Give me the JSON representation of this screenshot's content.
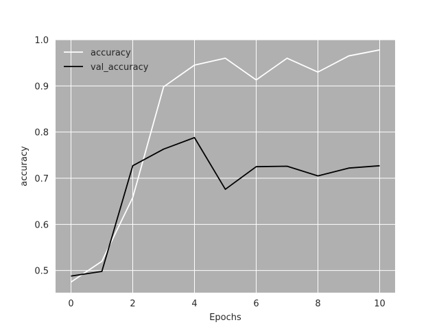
{
  "chart_data": {
    "type": "line",
    "xlabel": "Epochs",
    "ylabel": "accuracy",
    "xlim": [
      -0.5,
      10.5
    ],
    "ylim": [
      0.452,
      1.0
    ],
    "xticks": [
      "0",
      "2",
      "4",
      "6",
      "8",
      "10"
    ],
    "yticks": [
      "0.5",
      "0.6",
      "0.7",
      "0.8",
      "0.9",
      "1.0"
    ],
    "grid": true,
    "legend_position": "top-left",
    "background_color": "#b0b0b0",
    "grid_color": "#ffffff",
    "x": [
      0,
      1,
      2,
      3,
      4,
      5,
      6,
      7,
      8,
      9,
      10
    ],
    "series": [
      {
        "name": "accuracy",
        "color": "#ffffff",
        "values": [
          0.475,
          0.52,
          0.658,
          0.898,
          0.945,
          0.96,
          0.913,
          0.96,
          0.93,
          0.965,
          0.978
        ]
      },
      {
        "name": "val_accuracy",
        "color": "#000000",
        "values": [
          0.488,
          0.498,
          0.727,
          0.763,
          0.788,
          0.676,
          0.725,
          0.726,
          0.705,
          0.722,
          0.727
        ]
      }
    ]
  }
}
